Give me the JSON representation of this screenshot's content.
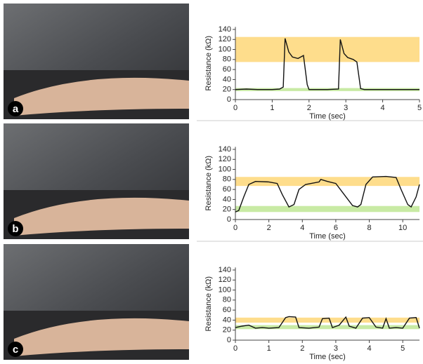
{
  "panels": [
    "a",
    "b",
    "c"
  ],
  "chart_data": [
    {
      "type": "line",
      "y_label": "Resistance (kΩ)",
      "x_label": "Time (sec)",
      "color": "#111111",
      "xlim": [
        0,
        5
      ],
      "xticks": [
        0,
        1,
        2,
        3,
        4,
        5
      ],
      "ylim": [
        0,
        145
      ],
      "yticks": [
        0,
        20,
        40,
        60,
        80,
        100,
        120,
        140
      ],
      "bands": [
        {
          "from": 75,
          "to": 125,
          "color": "#fedd8c"
        },
        {
          "from": 17,
          "to": 23,
          "color": "#c8eaa4"
        }
      ],
      "x": [
        0,
        0.3,
        0.6,
        1.0,
        1.2,
        1.3,
        1.35,
        1.45,
        1.55,
        1.7,
        1.85,
        1.95,
        2.0,
        2.1,
        2.5,
        2.8,
        2.85,
        2.95,
        3.05,
        3.2,
        3.3,
        3.4,
        3.5,
        4.0,
        4.5,
        5.0
      ],
      "values": [
        20,
        21,
        20,
        20,
        21,
        25,
        122,
        95,
        85,
        82,
        88,
        30,
        20,
        20,
        20,
        21,
        120,
        92,
        84,
        80,
        75,
        22,
        20,
        20,
        20,
        20
      ]
    },
    {
      "type": "line",
      "y_label": "Resistance (kΩ)",
      "x_label": "Time (sec)",
      "color": "#111111",
      "xlim": [
        0,
        11
      ],
      "xticks": [
        0,
        2,
        4,
        6,
        8,
        10
      ],
      "ylim": [
        0,
        145
      ],
      "yticks": [
        0,
        20,
        40,
        60,
        80,
        100,
        120,
        140
      ],
      "bands": [
        {
          "from": 67,
          "to": 85,
          "color": "#fedd8c"
        },
        {
          "from": 15,
          "to": 27,
          "color": "#c8eaa4"
        }
      ],
      "x": [
        0,
        0.2,
        0.5,
        0.8,
        1.2,
        2.0,
        2.5,
        2.8,
        3.2,
        3.5,
        3.8,
        4.2,
        5.0,
        5.1,
        5.5,
        6.0,
        6.5,
        7.0,
        7.3,
        7.5,
        7.8,
        8.2,
        9.0,
        9.6,
        9.9,
        10.3,
        10.5,
        10.8,
        11
      ],
      "values": [
        15,
        18,
        45,
        70,
        76,
        75,
        72,
        50,
        25,
        30,
        60,
        70,
        75,
        80,
        76,
        72,
        50,
        28,
        25,
        30,
        70,
        85,
        86,
        84,
        60,
        30,
        25,
        45,
        70
      ]
    },
    {
      "type": "line",
      "y_label": "Resistance (kΩ)",
      "x_label": "Time (sec)",
      "color": "#111111",
      "xlim": [
        0,
        5.5
      ],
      "xticks": [
        0,
        1,
        2,
        3,
        4,
        5
      ],
      "ylim": [
        0,
        145
      ],
      "yticks": [
        0,
        20,
        40,
        60,
        80,
        100,
        120,
        140
      ],
      "bands": [
        {
          "from": 35,
          "to": 45,
          "color": "#fedd8c"
        },
        {
          "from": 22,
          "to": 30,
          "color": "#c8eaa4"
        }
      ],
      "x": [
        0,
        0.2,
        0.4,
        0.6,
        0.8,
        1.0,
        1.3,
        1.5,
        1.6,
        1.8,
        1.9,
        2.2,
        2.5,
        2.6,
        2.8,
        2.9,
        3.1,
        3.3,
        3.4,
        3.6,
        3.8,
        4.0,
        4.2,
        4.4,
        4.5,
        4.6,
        4.8,
        5.0,
        5.2,
        5.4,
        5.5
      ],
      "values": [
        25,
        28,
        30,
        24,
        25,
        24,
        25,
        45,
        47,
        46,
        25,
        24,
        26,
        43,
        44,
        25,
        30,
        46,
        28,
        24,
        44,
        45,
        26,
        24,
        43,
        24,
        25,
        24,
        44,
        45,
        24
      ]
    }
  ]
}
